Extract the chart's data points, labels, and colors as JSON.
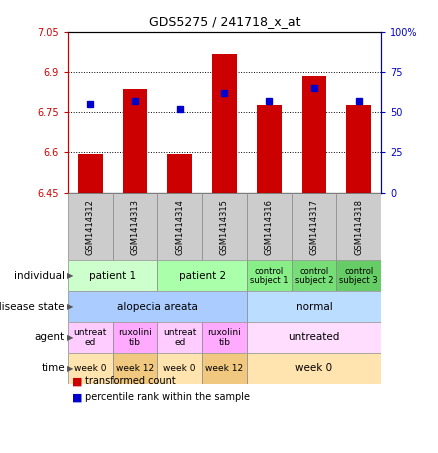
{
  "title": "GDS5275 / 241718_x_at",
  "samples": [
    "GSM1414312",
    "GSM1414313",
    "GSM1414314",
    "GSM1414315",
    "GSM1414316",
    "GSM1414317",
    "GSM1414318"
  ],
  "transformed_counts": [
    6.595,
    6.835,
    6.595,
    6.965,
    6.775,
    6.885,
    6.775
  ],
  "percentile_ranks": [
    55,
    57,
    52,
    62,
    57,
    65,
    57
  ],
  "ylim_left": [
    6.45,
    7.05
  ],
  "ylim_right": [
    0,
    100
  ],
  "yticks_left": [
    6.45,
    6.6,
    6.75,
    6.9,
    7.05
  ],
  "yticks_right": [
    0,
    25,
    50,
    75,
    100
  ],
  "ytick_labels_left": [
    "6.45",
    "6.6",
    "6.75",
    "6.9",
    "7.05"
  ],
  "ytick_labels_right": [
    "0",
    "25",
    "50",
    "75",
    "100%"
  ],
  "bar_color": "#cc0000",
  "dot_color": "#0000cc",
  "annotation_rows": [
    {
      "label": "individual",
      "cells": [
        {
          "text": "patient 1",
          "span": 2,
          "color": "#ccffcc",
          "fontsize": 7.5
        },
        {
          "text": "patient 2",
          "span": 2,
          "color": "#aaffaa",
          "fontsize": 7.5
        },
        {
          "text": "control\nsubject 1",
          "span": 1,
          "color": "#88ee88",
          "fontsize": 6
        },
        {
          "text": "control\nsubject 2",
          "span": 1,
          "color": "#77dd77",
          "fontsize": 6
        },
        {
          "text": "control\nsubject 3",
          "span": 1,
          "color": "#66cc66",
          "fontsize": 6
        }
      ]
    },
    {
      "label": "disease state",
      "cells": [
        {
          "text": "alopecia areata",
          "span": 4,
          "color": "#aaccff",
          "fontsize": 7.5
        },
        {
          "text": "normal",
          "span": 3,
          "color": "#bbddff",
          "fontsize": 7.5
        }
      ]
    },
    {
      "label": "agent",
      "cells": [
        {
          "text": "untreat\ned",
          "span": 1,
          "color": "#ffccff",
          "fontsize": 6.5
        },
        {
          "text": "ruxolini\ntib",
          "span": 1,
          "color": "#ffaaff",
          "fontsize": 6.5
        },
        {
          "text": "untreat\ned",
          "span": 1,
          "color": "#ffccff",
          "fontsize": 6.5
        },
        {
          "text": "ruxolini\ntib",
          "span": 1,
          "color": "#ffaaff",
          "fontsize": 6.5
        },
        {
          "text": "untreated",
          "span": 3,
          "color": "#ffddff",
          "fontsize": 7.5
        }
      ]
    },
    {
      "label": "time",
      "cells": [
        {
          "text": "week 0",
          "span": 1,
          "color": "#ffe4b0",
          "fontsize": 6.5
        },
        {
          "text": "week 12",
          "span": 1,
          "color": "#f0c880",
          "fontsize": 6.5
        },
        {
          "text": "week 0",
          "span": 1,
          "color": "#ffe4b0",
          "fontsize": 6.5
        },
        {
          "text": "week 12",
          "span": 1,
          "color": "#f0c880",
          "fontsize": 6.5
        },
        {
          "text": "week 0",
          "span": 3,
          "color": "#ffe4b0",
          "fontsize": 7.5
        }
      ]
    }
  ],
  "header_row_color": "#cccccc",
  "background_color": "#ffffff",
  "chart_bg": "#ffffff",
  "left_axis_color": "#cc0000",
  "right_axis_color": "#0000cc"
}
